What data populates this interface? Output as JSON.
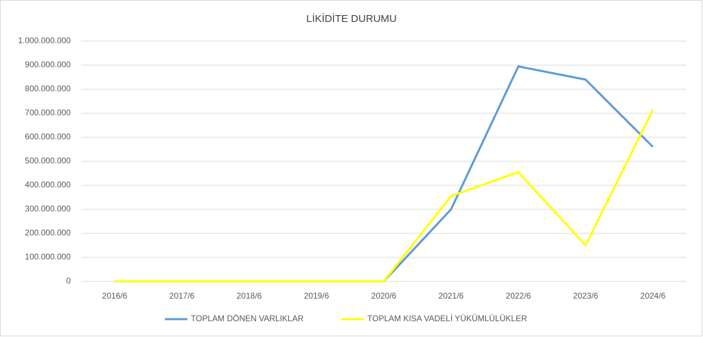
{
  "chart_data": {
    "type": "line",
    "title": "LİKİDİTE DURUMU",
    "categories": [
      "2016/6",
      "2017/6",
      "2018/6",
      "2019/6",
      "2020/6",
      "2021/6",
      "2022/6",
      "2023/6",
      "2024/6"
    ],
    "series": [
      {
        "name": "TOPLAM DÖNEN VARLIKLAR",
        "color": "#5b9bd5",
        "values": [
          0,
          0,
          0,
          0,
          0,
          300000000,
          895000000,
          840000000,
          560000000
        ]
      },
      {
        "name": "TOPLAM KISA VADELİ YÜKÜMLÜLÜKLER",
        "color": "#ffff00",
        "values": [
          0,
          0,
          0,
          0,
          0,
          355000000,
          455000000,
          150000000,
          715000000
        ]
      }
    ],
    "ylim": [
      0,
      1000000000
    ],
    "yticks": [
      0,
      {
        "value": 100000000,
        "label": "100.000.000"
      },
      {
        "value": 200000000,
        "label": "200.000.000"
      },
      {
        "value": 300000000,
        "label": "300.000.000"
      },
      {
        "value": 400000000,
        "label": "400.000.000"
      },
      {
        "value": 500000000,
        "label": "500.000.000"
      },
      {
        "value": 600000000,
        "label": "600.000.000"
      },
      {
        "value": 700000000,
        "label": "700.000.000"
      },
      {
        "value": 800000000,
        "label": "800.000.000"
      },
      {
        "value": 900000000,
        "label": "900.000.000"
      },
      {
        "value": 1000000000,
        "label": "1.000.000.000"
      }
    ],
    "grid": true,
    "legend": "bottom"
  }
}
